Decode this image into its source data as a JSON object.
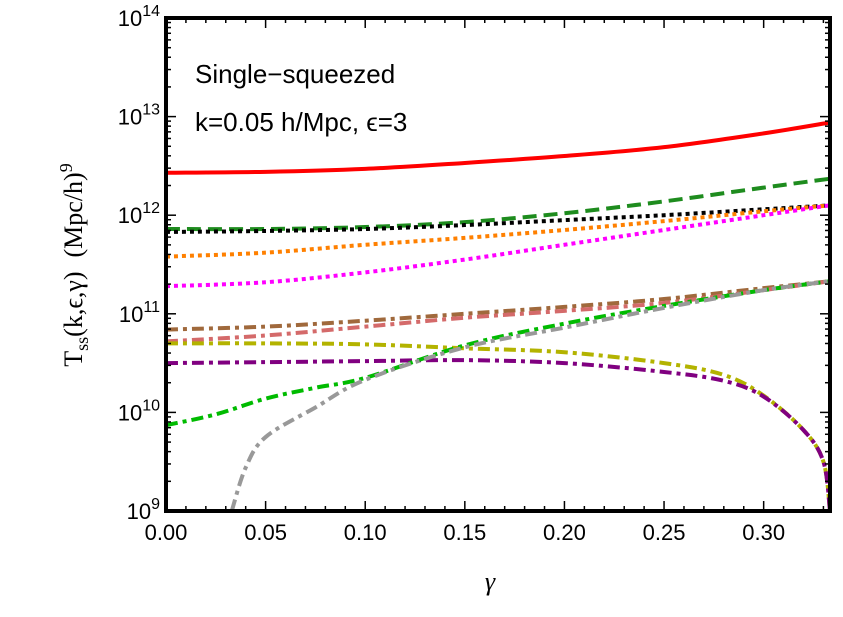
{
  "chart_data": {
    "type": "line",
    "xlabel": "γ",
    "ylabel": "T_ss(k,ε,γ)  (Mpc/h)^9",
    "ylabel_parts": {
      "main": "T",
      "sub": "ss",
      "args": "(k,ϵ,γ)",
      "unit": "(Mpc/h)",
      "sup": "9"
    },
    "annotations": [
      "Single−squeezed",
      "k=0.05 h/Mpc, ϵ=3"
    ],
    "xlim": [
      0,
      0.3333
    ],
    "ylim": [
      1000000000.0,
      100000000000000.0
    ],
    "yscale": "log",
    "grid": false,
    "x_ticks": [
      "0.00",
      "0.05",
      "0.10",
      "0.15",
      "0.20",
      "0.25",
      "0.30"
    ],
    "y_ticks": [
      {
        "base": "10",
        "exp": "9"
      },
      {
        "base": "10",
        "exp": "10"
      },
      {
        "base": "10",
        "exp": "11"
      },
      {
        "base": "10",
        "exp": "12"
      },
      {
        "base": "10",
        "exp": "13"
      },
      {
        "base": "10",
        "exp": "14"
      }
    ],
    "series": [
      {
        "color": "#ff0000",
        "style": "solid",
        "x": [
          0,
          0.05,
          0.1,
          0.15,
          0.2,
          0.25,
          0.3,
          0.3333
        ],
        "log10y": [
          12.43,
          12.44,
          12.47,
          12.53,
          12.6,
          12.69,
          12.83,
          12.94
        ]
      },
      {
        "color": "#1e8c1e",
        "style": "dashed",
        "x": [
          0,
          0.05,
          0.1,
          0.15,
          0.2,
          0.25,
          0.3,
          0.3333
        ],
        "log10y": [
          11.86,
          11.86,
          11.88,
          11.93,
          12.02,
          12.14,
          12.28,
          12.37
        ]
      },
      {
        "color": "#000000",
        "style": "dotted",
        "x": [
          0,
          0.05,
          0.1,
          0.15,
          0.2,
          0.25,
          0.3,
          0.3333
        ],
        "log10y": [
          11.83,
          11.84,
          11.86,
          11.9,
          11.95,
          12.0,
          12.06,
          12.1
        ]
      },
      {
        "color": "#ff8000",
        "style": "dotted",
        "x": [
          0,
          0.05,
          0.1,
          0.15,
          0.2,
          0.25,
          0.3,
          0.3333
        ],
        "log10y": [
          11.58,
          11.62,
          11.7,
          11.77,
          11.85,
          11.94,
          12.04,
          12.1
        ]
      },
      {
        "color": "#ff00ff",
        "style": "dotted",
        "x": [
          0,
          0.05,
          0.1,
          0.15,
          0.2,
          0.25,
          0.3,
          0.3333
        ],
        "log10y": [
          11.28,
          11.32,
          11.42,
          11.55,
          11.7,
          11.85,
          12.0,
          12.1
        ]
      },
      {
        "color": "#a0693c",
        "style": "dashdot",
        "x": [
          0,
          0.05,
          0.1,
          0.15,
          0.2,
          0.25,
          0.3,
          0.3333
        ],
        "log10y": [
          10.84,
          10.87,
          10.93,
          11.0,
          11.07,
          11.15,
          11.26,
          11.33
        ]
      },
      {
        "color": "#d46a6a",
        "style": "dashdot",
        "x": [
          0,
          0.05,
          0.1,
          0.15,
          0.2,
          0.25,
          0.3,
          0.3333
        ],
        "log10y": [
          10.72,
          10.78,
          10.87,
          10.96,
          11.03,
          11.11,
          11.24,
          11.33
        ]
      },
      {
        "color": "#b3b300",
        "style": "dashdot",
        "x": [
          0,
          0.05,
          0.1,
          0.15,
          0.2,
          0.25,
          0.28,
          0.3,
          0.32,
          0.33,
          0.3333
        ],
        "log10y": [
          10.7,
          10.7,
          10.69,
          10.65,
          10.61,
          10.5,
          10.38,
          10.17,
          9.82,
          9.5,
          9.0
        ]
      },
      {
        "color": "#800080",
        "style": "dashdot",
        "x": [
          0,
          0.05,
          0.1,
          0.15,
          0.2,
          0.25,
          0.28,
          0.3,
          0.32,
          0.33,
          0.3333
        ],
        "log10y": [
          10.5,
          10.51,
          10.52,
          10.53,
          10.5,
          10.41,
          10.32,
          10.16,
          9.82,
          9.5,
          9.0
        ]
      },
      {
        "color": "#00bb00",
        "style": "dashdot",
        "x": [
          0,
          0.025,
          0.05,
          0.075,
          0.1,
          0.15,
          0.2,
          0.25,
          0.3,
          0.3333
        ],
        "log10y": [
          9.87,
          9.98,
          10.14,
          10.25,
          10.35,
          10.68,
          10.9,
          11.08,
          11.24,
          11.33
        ]
      },
      {
        "color": "#999999",
        "style": "dashdot",
        "x": [
          0.033,
          0.04,
          0.05,
          0.075,
          0.1,
          0.15,
          0.2,
          0.25,
          0.3,
          0.3333
        ],
        "log10y": [
          9.0,
          9.44,
          9.75,
          10.05,
          10.33,
          10.66,
          10.86,
          11.06,
          11.24,
          11.33
        ]
      }
    ]
  }
}
